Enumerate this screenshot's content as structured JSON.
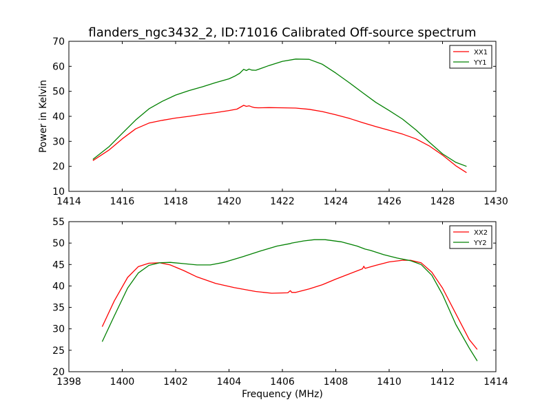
{
  "title": "flanders_ngc3432_2, ID:71016 Calibrated Off-source spectrum",
  "colors": {
    "XX": "#ff0000",
    "YY": "#008000"
  },
  "chart_data": [
    {
      "type": "line",
      "title": "flanders_ngc3432_2, ID:71016 Calibrated Off-source spectrum",
      "xlabel": "",
      "ylabel": "Power in Kelvin",
      "xlim": [
        1414,
        1430
      ],
      "ylim": [
        10,
        70
      ],
      "xticks": [
        1414,
        1416,
        1418,
        1420,
        1422,
        1424,
        1426,
        1428,
        1430
      ],
      "yticks": [
        10,
        20,
        30,
        40,
        50,
        60,
        70
      ],
      "grid": false,
      "legend_position": "top-right",
      "series": [
        {
          "name": "XX1",
          "color": "#ff0000",
          "x": [
            1414.9,
            1415.5,
            1416.0,
            1416.5,
            1417.0,
            1417.5,
            1418.0,
            1418.5,
            1419.0,
            1419.5,
            1420.0,
            1420.3,
            1420.55,
            1420.65,
            1420.75,
            1420.85,
            1420.95,
            1421.1,
            1421.5,
            1422.0,
            1422.5,
            1423.0,
            1423.5,
            1424.0,
            1424.5,
            1425.0,
            1425.5,
            1426.0,
            1426.5,
            1427.0,
            1427.5,
            1428.0,
            1428.5,
            1428.9
          ],
          "y": [
            22.3,
            26.5,
            31.0,
            35.0,
            37.3,
            38.4,
            39.3,
            40.0,
            40.8,
            41.5,
            42.3,
            42.9,
            44.4,
            44.0,
            44.2,
            43.8,
            43.5,
            43.4,
            43.5,
            43.4,
            43.3,
            42.8,
            41.9,
            40.6,
            39.2,
            37.5,
            35.9,
            34.4,
            32.9,
            31.0,
            28.2,
            24.5,
            20.2,
            17.5
          ]
        },
        {
          "name": "YY1",
          "color": "#008000",
          "x": [
            1414.9,
            1415.5,
            1416.0,
            1416.5,
            1417.0,
            1417.5,
            1418.0,
            1418.5,
            1419.0,
            1419.5,
            1420.0,
            1420.2,
            1420.4,
            1420.55,
            1420.65,
            1420.75,
            1420.85,
            1421.0,
            1421.5,
            1422.0,
            1422.5,
            1423.0,
            1423.5,
            1424.0,
            1424.5,
            1425.0,
            1425.5,
            1426.0,
            1426.5,
            1427.0,
            1427.5,
            1428.0,
            1428.5,
            1428.9
          ],
          "y": [
            22.8,
            27.8,
            33.2,
            38.5,
            43.0,
            46.0,
            48.5,
            50.3,
            51.8,
            53.5,
            55.0,
            56.0,
            57.2,
            58.8,
            58.3,
            58.9,
            58.5,
            58.4,
            60.3,
            62.0,
            62.9,
            62.8,
            60.8,
            57.3,
            53.5,
            49.5,
            45.6,
            42.3,
            38.9,
            34.6,
            29.7,
            25.0,
            21.6,
            20.0
          ]
        }
      ]
    },
    {
      "type": "line",
      "title": "",
      "xlabel": "Frequency (MHz)",
      "ylabel": "",
      "xlim": [
        1398,
        1414
      ],
      "ylim": [
        20,
        55
      ],
      "xticks": [
        1398,
        1400,
        1402,
        1404,
        1406,
        1408,
        1410,
        1412,
        1414
      ],
      "yticks": [
        20,
        25,
        30,
        35,
        40,
        45,
        50,
        55
      ],
      "grid": false,
      "legend_position": "top-right",
      "series": [
        {
          "name": "XX2",
          "color": "#ff0000",
          "x": [
            1399.25,
            1399.7,
            1400.2,
            1400.6,
            1401.0,
            1401.4,
            1401.8,
            1402.3,
            1402.8,
            1403.5,
            1404.2,
            1405.0,
            1405.6,
            1406.2,
            1406.3,
            1406.35,
            1406.5,
            1407.0,
            1407.5,
            1408.0,
            1408.5,
            1409.0,
            1409.05,
            1409.1,
            1409.5,
            1410.0,
            1410.5,
            1410.8,
            1411.2,
            1411.6,
            1412.0,
            1412.5,
            1413.0,
            1413.3
          ],
          "y": [
            30.5,
            36.5,
            42.0,
            44.5,
            45.3,
            45.4,
            44.9,
            43.6,
            42.1,
            40.6,
            39.6,
            38.7,
            38.3,
            38.4,
            38.9,
            38.5,
            38.5,
            39.3,
            40.3,
            41.6,
            42.8,
            44.0,
            44.6,
            44.1,
            44.8,
            45.6,
            46.0,
            46.0,
            45.4,
            43.2,
            39.5,
            33.5,
            27.5,
            25.2
          ]
        },
        {
          "name": "YY2",
          "color": "#008000",
          "x": [
            1399.25,
            1399.7,
            1400.2,
            1400.6,
            1401.0,
            1401.4,
            1401.8,
            1402.3,
            1402.8,
            1403.3,
            1403.8,
            1404.5,
            1405.2,
            1405.8,
            1406.3,
            1406.35,
            1406.8,
            1407.2,
            1407.6,
            1408.2,
            1408.8,
            1409.1,
            1409.3,
            1409.8,
            1410.3,
            1410.8,
            1411.2,
            1411.6,
            1412.0,
            1412.5,
            1413.0,
            1413.3
          ],
          "y": [
            27.0,
            33.0,
            39.5,
            43.0,
            44.8,
            45.4,
            45.5,
            45.2,
            44.9,
            44.9,
            45.5,
            46.8,
            48.2,
            49.3,
            49.9,
            50.0,
            50.5,
            50.8,
            50.8,
            50.3,
            49.3,
            48.6,
            48.3,
            47.3,
            46.5,
            45.9,
            45.0,
            42.5,
            38.0,
            31.0,
            25.5,
            22.5
          ]
        }
      ]
    }
  ]
}
